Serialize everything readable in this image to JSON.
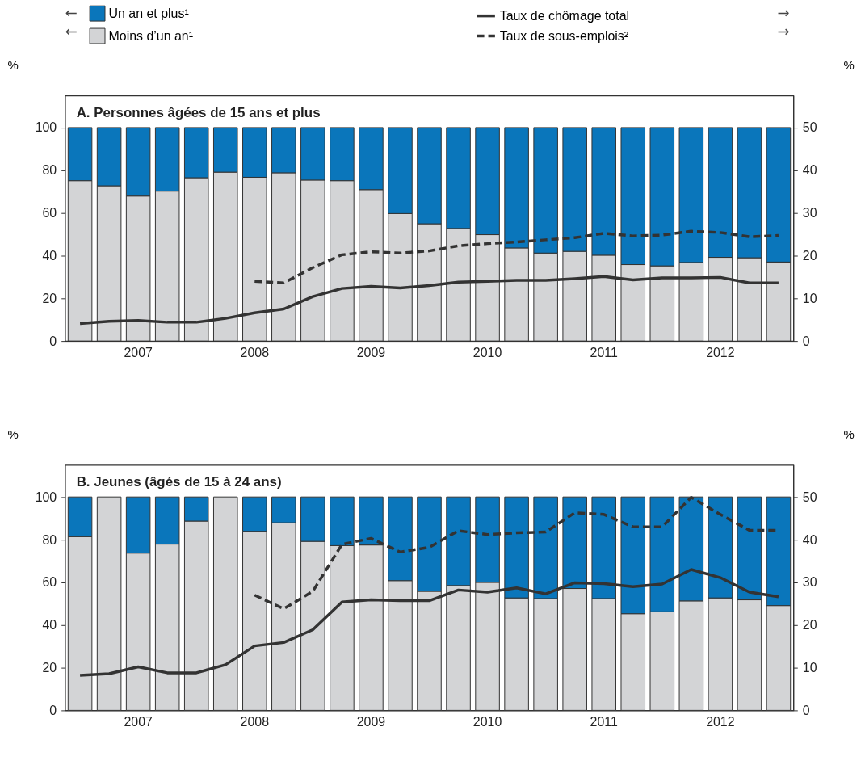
{
  "chart_data": [
    {
      "type": "bar",
      "stacked": true,
      "title": "A. Personnes âgées de 15 ans et plus",
      "ylabel": "%",
      "y2label": "%",
      "categories": [
        null,
        null,
        "2007",
        null,
        null,
        null,
        "2008",
        null,
        null,
        null,
        "2009",
        null,
        null,
        null,
        "2010",
        null,
        null,
        null,
        "2011",
        null,
        null,
        null,
        "2012",
        null,
        null
      ],
      "ylim": [
        0,
        115
      ],
      "yticks": [
        0,
        20,
        40,
        60,
        80,
        100
      ],
      "y2lim": [
        0,
        57.5
      ],
      "y2ticks": [
        0,
        10,
        20,
        30,
        40,
        50
      ],
      "grid": false,
      "legend": "top",
      "annotations": [
        "←",
        "←",
        "→",
        "→"
      ],
      "series": [
        {
          "name": "Moins d’un an¹",
          "color": "#d3d4d6",
          "values": [
            75.1,
            72.7,
            67.9,
            70.2,
            76.5,
            79.1,
            76.7,
            78.8,
            75.4,
            75.1,
            70.9,
            59.7,
            54.9,
            52.7,
            49.8,
            43.6,
            41.2,
            42,
            40.2,
            35.8,
            35.2,
            36.8,
            39.2,
            39,
            37
          ]
        },
        {
          "name": "Un an et plus¹",
          "color": "#0a76bb",
          "values": [
            24.9,
            27.3,
            32.1,
            29.8,
            23.5,
            20.9,
            23.3,
            21.2,
            24.6,
            24.9,
            29.1,
            40.3,
            45.1,
            47.3,
            50.2,
            56.4,
            58.8,
            58,
            59.8,
            64.2,
            64.8,
            63.2,
            60.8,
            61,
            63
          ]
        },
        {
          "name": "Taux de chômage total",
          "type": "line",
          "axis": "y2",
          "line_style": "solid",
          "color": "#333333",
          "values": [
            4.1,
            4.6,
            4.8,
            4.4,
            4.4,
            5.3,
            6.6,
            7.5,
            10.4,
            12.3,
            12.8,
            12.4,
            13,
            13.8,
            14,
            14.2,
            14.2,
            14.6,
            15.1,
            14.3,
            14.8,
            14.8,
            14.9,
            13.6,
            13.6
          ]
        },
        {
          "name": "Taux de sous-emplois²",
          "type": "line",
          "axis": "y2",
          "line_style": "dashed",
          "color": "#333333",
          "values": [
            null,
            null,
            null,
            null,
            null,
            null,
            14,
            13.6,
            17.2,
            20.2,
            20.9,
            20.6,
            21.1,
            22.3,
            22.8,
            23.2,
            23.7,
            24.2,
            25.2,
            24.6,
            24.8,
            25.7,
            25.4,
            24.4,
            24.7
          ]
        }
      ]
    },
    {
      "type": "bar",
      "stacked": true,
      "title": "B. Jeunes (âgés de 15 à 24 ans)",
      "ylabel": "%",
      "y2label": "%",
      "categories": [
        null,
        null,
        "2007",
        null,
        null,
        null,
        "2008",
        null,
        null,
        null,
        "2009",
        null,
        null,
        null,
        "2010",
        null,
        null,
        null,
        "2011",
        null,
        null,
        null,
        "2012",
        null,
        null
      ],
      "ylim": [
        0,
        115
      ],
      "yticks": [
        0,
        20,
        40,
        60,
        80,
        100
      ],
      "y2lim": [
        0,
        57.5
      ],
      "y2ticks": [
        0,
        10,
        20,
        30,
        40,
        50
      ],
      "grid": false,
      "series": [
        {
          "color": "#d3d4d6",
          "values": [
            81.4,
            100,
            73.7,
            77.9,
            88.7,
            100,
            83.9,
            87.9,
            79.2,
            77.2,
            77.5,
            60.8,
            55.8,
            58.5,
            60,
            52.7,
            52.4,
            57.1,
            52.4,
            45.3,
            46.2,
            51.3,
            52.7,
            51.8,
            49.1
          ]
        },
        {
          "color": "#0a76bb",
          "values": [
            18.6,
            0,
            26.3,
            22.1,
            11.3,
            0,
            16.1,
            12.1,
            20.8,
            22.8,
            22.5,
            39.2,
            44.2,
            41.5,
            40,
            47.3,
            47.6,
            42.9,
            47.6,
            54.7,
            53.8,
            48.7,
            47.3,
            48.2,
            50.9
          ]
        },
        {
          "type": "line",
          "axis": "y2",
          "line_style": "solid",
          "color": "#333333",
          "values": [
            8.2,
            8.6,
            10.2,
            8.8,
            8.8,
            10.7,
            15.1,
            15.9,
            18.9,
            25.4,
            25.9,
            25.7,
            25.7,
            28.2,
            27.7,
            28.7,
            27.3,
            29.9,
            29.7,
            29,
            29.6,
            33,
            31.1,
            27.7,
            26.6
          ]
        },
        {
          "type": "line",
          "axis": "y2",
          "line_style": "dashed",
          "color": "#333333",
          "values": [
            null,
            null,
            null,
            null,
            null,
            null,
            27,
            23.8,
            27.9,
            38.9,
            40.3,
            37.1,
            38.2,
            42.1,
            41.2,
            41.6,
            41.8,
            46.3,
            45.9,
            43,
            43,
            49.9,
            45.9,
            42.2,
            42.2
          ]
        }
      ]
    }
  ]
}
